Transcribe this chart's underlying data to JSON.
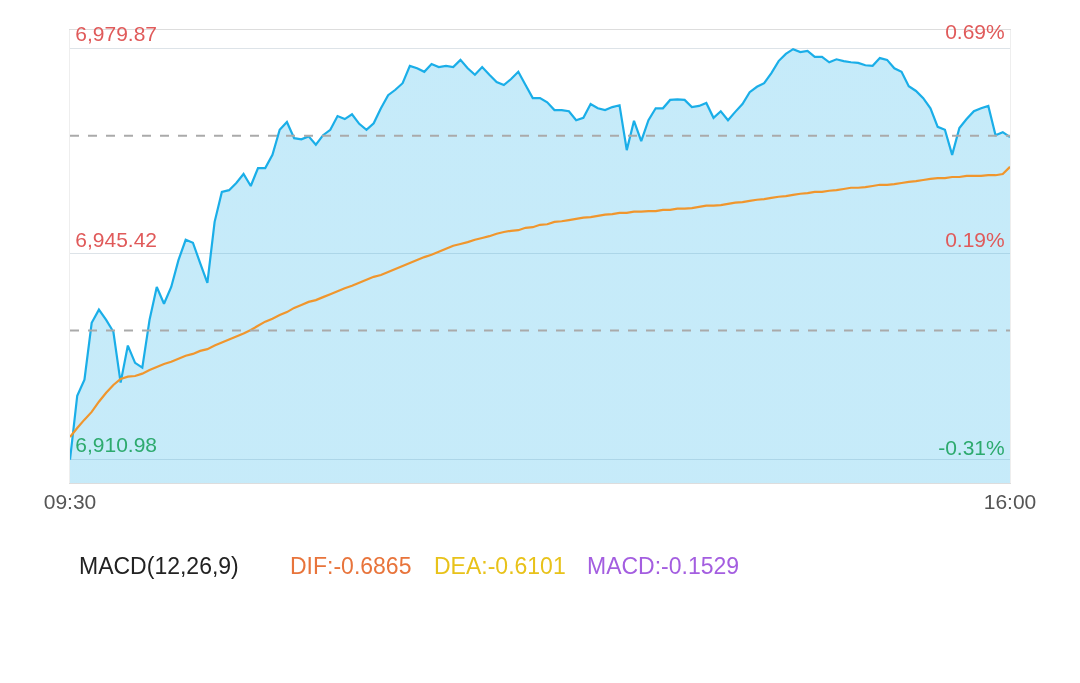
{
  "chart_data": {
    "type": "line",
    "x": [
      9.5,
      9.55,
      9.6,
      9.65,
      9.7,
      9.75,
      9.8,
      9.85,
      9.9,
      9.95,
      10.0,
      10.05,
      10.1,
      10.15,
      10.2,
      10.25,
      10.3,
      10.35,
      10.4,
      10.45,
      10.5,
      10.55,
      10.6,
      10.65,
      10.7,
      10.75,
      10.8,
      10.85,
      10.9,
      10.95,
      11.0,
      11.05,
      11.1,
      11.15,
      11.2,
      11.25,
      11.3,
      11.35,
      11.4,
      11.45,
      11.5,
      11.55,
      11.6,
      11.65,
      11.7,
      11.75,
      11.8,
      11.85,
      11.9,
      11.95,
      12.0,
      12.05,
      12.1,
      12.15,
      12.2,
      12.25,
      12.3,
      12.35,
      12.4,
      12.45,
      12.5,
      12.55,
      12.6,
      12.65,
      12.7,
      12.75,
      12.8,
      12.85,
      12.9,
      12.95,
      13.0,
      13.05,
      13.1,
      13.15,
      13.2,
      13.25,
      13.3,
      13.35,
      13.4,
      13.45,
      13.5,
      13.55,
      13.6,
      13.65,
      13.7,
      13.75,
      13.8,
      13.85,
      13.9,
      13.95,
      14.0,
      14.05,
      14.1,
      14.15,
      14.2,
      14.25,
      14.3,
      14.35,
      14.4,
      14.45,
      14.5,
      14.55,
      14.6,
      14.65,
      14.7,
      14.75,
      14.8,
      14.85,
      14.9,
      14.95,
      15.0,
      15.05,
      15.1,
      15.15,
      15.2,
      15.25,
      15.3,
      15.35,
      15.4,
      15.45,
      15.5,
      15.55,
      15.6,
      15.65,
      15.7,
      15.75,
      15.8,
      15.85,
      15.9,
      15.95,
      16.0
    ],
    "series": [
      {
        "type": "area",
        "color": "#1aaee8",
        "values": [
          6911.0,
          6921.7,
          6924.4,
          6933.9,
          6936.1,
          6934.4,
          6932.4,
          6923.9,
          6930.1,
          6927.2,
          6926.4,
          6934.4,
          6939.9,
          6937.1,
          6939.9,
          6944.4,
          6947.8,
          6947.3,
          6943.9,
          6940.6,
          6950.8,
          6955.8,
          6956.1,
          6957.3,
          6958.8,
          6956.8,
          6959.8,
          6959.8,
          6962.0,
          6966.2,
          6967.5,
          6964.8,
          6964.6,
          6965.1,
          6963.7,
          6965.3,
          6966.2,
          6968.5,
          6968.0,
          6968.8,
          6967.2,
          6966.2,
          6967.3,
          6969.8,
          6972.0,
          6972.9,
          6974.0,
          6976.9,
          6976.5,
          6975.9,
          6977.2,
          6976.7,
          6976.9,
          6976.7,
          6977.9,
          6976.5,
          6975.4,
          6976.7,
          6975.4,
          6974.2,
          6973.7,
          6974.7,
          6975.9,
          6973.7,
          6971.5,
          6971.5,
          6970.8,
          6969.5,
          6969.5,
          6969.3,
          6967.8,
          6968.2,
          6970.5,
          6969.8,
          6969.5,
          6970.0,
          6970.3,
          6962.8,
          6967.7,
          6964.3,
          6967.8,
          6969.8,
          6969.8,
          6971.2,
          6971.3,
          6971.2,
          6970.0,
          6970.2,
          6970.7,
          6968.2,
          6969.3,
          6967.8,
          6969.2,
          6970.5,
          6972.5,
          6973.4,
          6974.0,
          6975.7,
          6977.7,
          6978.9,
          6979.7,
          6979.2,
          6979.4,
          6978.4,
          6978.4,
          6977.5,
          6978.0,
          6977.7,
          6977.5,
          6977.4,
          6977.0,
          6976.9,
          6978.2,
          6977.9,
          6976.5,
          6975.9,
          6973.5,
          6972.7,
          6971.5,
          6969.8,
          6966.7,
          6966.2,
          6962.0,
          6966.5,
          6968.0,
          6969.3,
          6969.8,
          6970.2,
          6965.3,
          6965.8,
          6965.0
        ]
      },
      {
        "color": "#f0962d",
        "values": [
          6914.8,
          6916.3,
          6917.7,
          6919.0,
          6920.7,
          6922.2,
          6923.5,
          6924.5,
          6924.9,
          6925.0,
          6925.4,
          6926.0,
          6926.5,
          6927.0,
          6927.4,
          6927.9,
          6928.4,
          6928.7,
          6929.2,
          6929.5,
          6930.1,
          6930.6,
          6931.1,
          6931.6,
          6932.1,
          6932.7,
          6933.4,
          6934.1,
          6934.6,
          6935.2,
          6935.7,
          6936.4,
          6936.9,
          6937.4,
          6937.7,
          6938.2,
          6938.7,
          6939.2,
          6939.7,
          6940.1,
          6940.6,
          6941.1,
          6941.6,
          6941.9,
          6942.4,
          6942.9,
          6943.4,
          6943.9,
          6944.4,
          6944.9,
          6945.3,
          6945.8,
          6946.3,
          6946.8,
          6947.1,
          6947.4,
          6947.8,
          6948.1,
          6948.4,
          6948.8,
          6949.1,
          6949.3,
          6949.4,
          6949.8,
          6949.9,
          6950.3,
          6950.4,
          6950.8,
          6950.9,
          6951.1,
          6951.3,
          6951.5,
          6951.6,
          6951.8,
          6952.0,
          6952.1,
          6952.3,
          6952.3,
          6952.5,
          6952.5,
          6952.6,
          6952.6,
          6952.8,
          6952.8,
          6953.0,
          6953.0,
          6953.1,
          6953.3,
          6953.5,
          6953.5,
          6953.6,
          6953.8,
          6954.0,
          6954.1,
          6954.3,
          6954.5,
          6954.6,
          6954.8,
          6955.0,
          6955.1,
          6955.3,
          6955.5,
          6955.6,
          6955.8,
          6955.8,
          6956.0,
          6956.1,
          6956.3,
          6956.5,
          6956.5,
          6956.6,
          6956.8,
          6957.0,
          6957.0,
          6957.1,
          6957.3,
          6957.5,
          6957.6,
          6957.8,
          6958.0,
          6958.1,
          6958.1,
          6958.3,
          6958.3,
          6958.5,
          6958.5,
          6958.5,
          6958.6,
          6958.6,
          6958.8,
          6960.0
        ]
      }
    ],
    "xlim": [
      9.5,
      16
    ],
    "xticks": [
      {
        "value": 9.5,
        "label": "09:30"
      },
      {
        "value": 16,
        "label": "16:00"
      }
    ],
    "ylim": [
      6907.1,
      6982.9
    ],
    "yticks": [
      {
        "value": 6910.98,
        "label": "6,910.98"
      },
      {
        "value": 6945.42,
        "label": "6,945.42"
      },
      {
        "value": 6979.87,
        "label": "6,979.87"
      }
    ],
    "y2lim": [
      -0.36,
      0.73
    ],
    "y2ticks": [
      {
        "value": -0.31,
        "label": "-0.31%"
      },
      {
        "value": 0.19,
        "label": "0.19%"
      },
      {
        "value": 0.69,
        "label": "0.69%"
      }
    ],
    "ref_lines": [
      {
        "axis": "y",
        "value": 6965.2,
        "color": "#aaaaaa",
        "line_style": "dashed"
      },
      {
        "axis": "y",
        "value": 6932.6,
        "color": "#aaaaaa",
        "line_style": "dashed"
      }
    ],
    "grid": "y",
    "marker": "none",
    "line_style": "solid",
    "annotations": [
      "MACD(12,26,9)",
      "DIF:-0.6865",
      "DEA:-0.6101",
      "MACD:-0.1529"
    ]
  }
}
